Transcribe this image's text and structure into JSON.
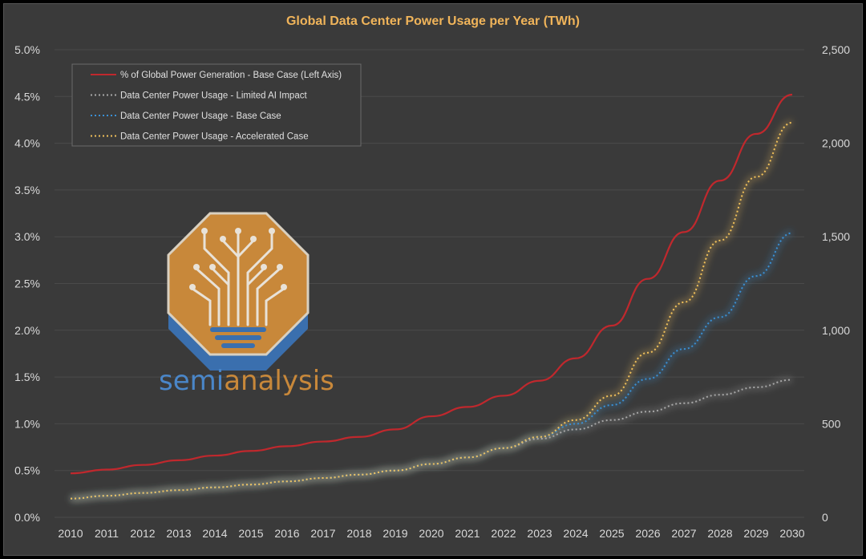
{
  "chart_data": {
    "type": "line",
    "title": "Global Data Center Power Usage per Year (TWh)",
    "xlabel": "",
    "ylabel_left": "",
    "ylabel_right": "",
    "x": [
      2010,
      2011,
      2012,
      2013,
      2014,
      2015,
      2016,
      2017,
      2018,
      2019,
      2020,
      2021,
      2022,
      2023,
      2024,
      2025,
      2026,
      2027,
      2028,
      2029,
      2030
    ],
    "left_ylim": [
      0,
      0.05
    ],
    "right_ylim": [
      0,
      2500
    ],
    "left_ticks": [
      "0.0%",
      "0.5%",
      "1.0%",
      "1.5%",
      "2.0%",
      "2.5%",
      "3.0%",
      "3.5%",
      "4.0%",
      "4.5%",
      "5.0%"
    ],
    "right_ticks": [
      "0",
      "500",
      "1,000",
      "1,500",
      "2,000",
      "2,500"
    ],
    "grid": "horizontal",
    "legend_placement": "top-left",
    "series": [
      {
        "name": "% of Global Power Generation - Base Case (Left Axis)",
        "axis": "left",
        "style": "solid",
        "color": "#c0282d",
        "values": [
          0.0047,
          0.0051,
          0.0056,
          0.0061,
          0.0066,
          0.0071,
          0.0076,
          0.0081,
          0.0086,
          0.0094,
          0.0108,
          0.0118,
          0.013,
          0.0146,
          0.017,
          0.0205,
          0.0255,
          0.0305,
          0.036,
          0.041,
          0.0452
        ]
      },
      {
        "name": "Data Center Power Usage - Limited AI Impact",
        "axis": "right",
        "style": "dotted",
        "color": "#a8a8a8",
        "values": [
          100,
          115,
          130,
          145,
          160,
          175,
          192,
          210,
          228,
          250,
          285,
          320,
          370,
          420,
          470,
          520,
          565,
          610,
          655,
          695,
          735
        ]
      },
      {
        "name": "Data Center Power Usage - Base Case",
        "axis": "right",
        "style": "dotted",
        "color": "#3a8fd4",
        "values": [
          100,
          115,
          130,
          145,
          160,
          175,
          192,
          210,
          228,
          250,
          285,
          320,
          370,
          430,
          500,
          600,
          740,
          900,
          1070,
          1290,
          1520
        ]
      },
      {
        "name": "Data Center Power Usage - Accelerated Case",
        "axis": "right",
        "style": "dotted",
        "color": "#f0c05a",
        "values": [
          100,
          115,
          130,
          145,
          160,
          175,
          192,
          210,
          228,
          250,
          285,
          320,
          370,
          430,
          520,
          650,
          880,
          1150,
          1480,
          1820,
          2110
        ]
      }
    ]
  },
  "logo": {
    "text_part1": "semi",
    "text_part2": "analysis",
    "color_part1": "#4a86c8",
    "color_part2": "#c8883a"
  }
}
